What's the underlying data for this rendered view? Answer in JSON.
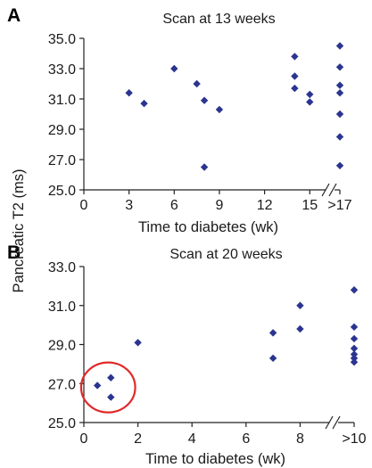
{
  "colors": {
    "marker": "#2b3590",
    "highlight_circle": "#e02a2a",
    "axis": "#222222"
  },
  "ylabel": "Pancreatic T2 (ms)",
  "chart_data": [
    {
      "panel": "A",
      "type": "scatter",
      "title": "Scan at 13 weeks",
      "xlabel": "Time to diabetes (wk)",
      "ylabel": "Pancreatic T2 (ms)",
      "xlim": [
        0,
        17
      ],
      "ylim": [
        25.0,
        35.0
      ],
      "x_ticks": [
        0,
        3,
        6,
        9,
        12,
        15,
        17
      ],
      "x_tick_labels": [
        "0",
        "3",
        "6",
        "9",
        "12",
        "15",
        ">17"
      ],
      "y_ticks": [
        25.0,
        27.0,
        29.0,
        31.0,
        33.0,
        35.0
      ],
      "y_tick_labels": [
        "25.0",
        "27.0",
        "29.0",
        "31.0",
        "33.0",
        "35.0"
      ],
      "axis_break": "between 15 and >17",
      "grid": false,
      "points": [
        {
          "x": 3,
          "y": 31.4
        },
        {
          "x": 4,
          "y": 30.7
        },
        {
          "x": 6,
          "y": 33.0
        },
        {
          "x": 7.5,
          "y": 32.0
        },
        {
          "x": 8,
          "y": 30.9
        },
        {
          "x": 8,
          "y": 26.5
        },
        {
          "x": 9,
          "y": 30.3
        },
        {
          "x": 14,
          "y": 33.8
        },
        {
          "x": 14,
          "y": 32.5
        },
        {
          "x": 14,
          "y": 31.7
        },
        {
          "x": 15,
          "y": 31.3
        },
        {
          "x": 15,
          "y": 30.8
        },
        {
          "x": 17,
          "y": 34.5
        },
        {
          "x": 17,
          "y": 33.1
        },
        {
          "x": 17,
          "y": 31.9
        },
        {
          "x": 17,
          "y": 31.4
        },
        {
          "x": 17,
          "y": 30.0
        },
        {
          "x": 17,
          "y": 28.5
        },
        {
          "x": 17,
          "y": 26.6
        }
      ]
    },
    {
      "panel": "B",
      "type": "scatter",
      "title": "Scan at 20 weeks",
      "xlabel": "Time to diabetes (wk)",
      "ylabel": "Pancreatic T2 (ms)",
      "xlim": [
        0,
        10
      ],
      "ylim": [
        25.0,
        33.0
      ],
      "x_ticks": [
        0,
        2,
        4,
        6,
        8,
        10
      ],
      "x_tick_labels": [
        "0",
        "2",
        "4",
        "6",
        "8",
        ">10"
      ],
      "y_ticks": [
        25.0,
        27.0,
        29.0,
        31.0,
        33.0
      ],
      "y_tick_labels": [
        "25.0",
        "27.0",
        "29.0",
        "31.0",
        "33.0"
      ],
      "axis_break": "between 8 and >10",
      "grid": false,
      "highlight_circle": {
        "cx": 0.9,
        "cy": 26.8,
        "rx": 1.0,
        "ry": 1.28
      },
      "points": [
        {
          "x": 0.5,
          "y": 26.9
        },
        {
          "x": 1.0,
          "y": 27.3
        },
        {
          "x": 1.0,
          "y": 26.3
        },
        {
          "x": 2.0,
          "y": 29.1
        },
        {
          "x": 7.0,
          "y": 29.6
        },
        {
          "x": 7.0,
          "y": 28.3
        },
        {
          "x": 8.0,
          "y": 31.0
        },
        {
          "x": 8.0,
          "y": 29.8
        },
        {
          "x": 10,
          "y": 31.8
        },
        {
          "x": 10,
          "y": 29.9
        },
        {
          "x": 10,
          "y": 29.3
        },
        {
          "x": 10,
          "y": 28.8
        },
        {
          "x": 10,
          "y": 28.5
        },
        {
          "x": 10,
          "y": 28.3
        },
        {
          "x": 10,
          "y": 28.1
        }
      ]
    }
  ]
}
